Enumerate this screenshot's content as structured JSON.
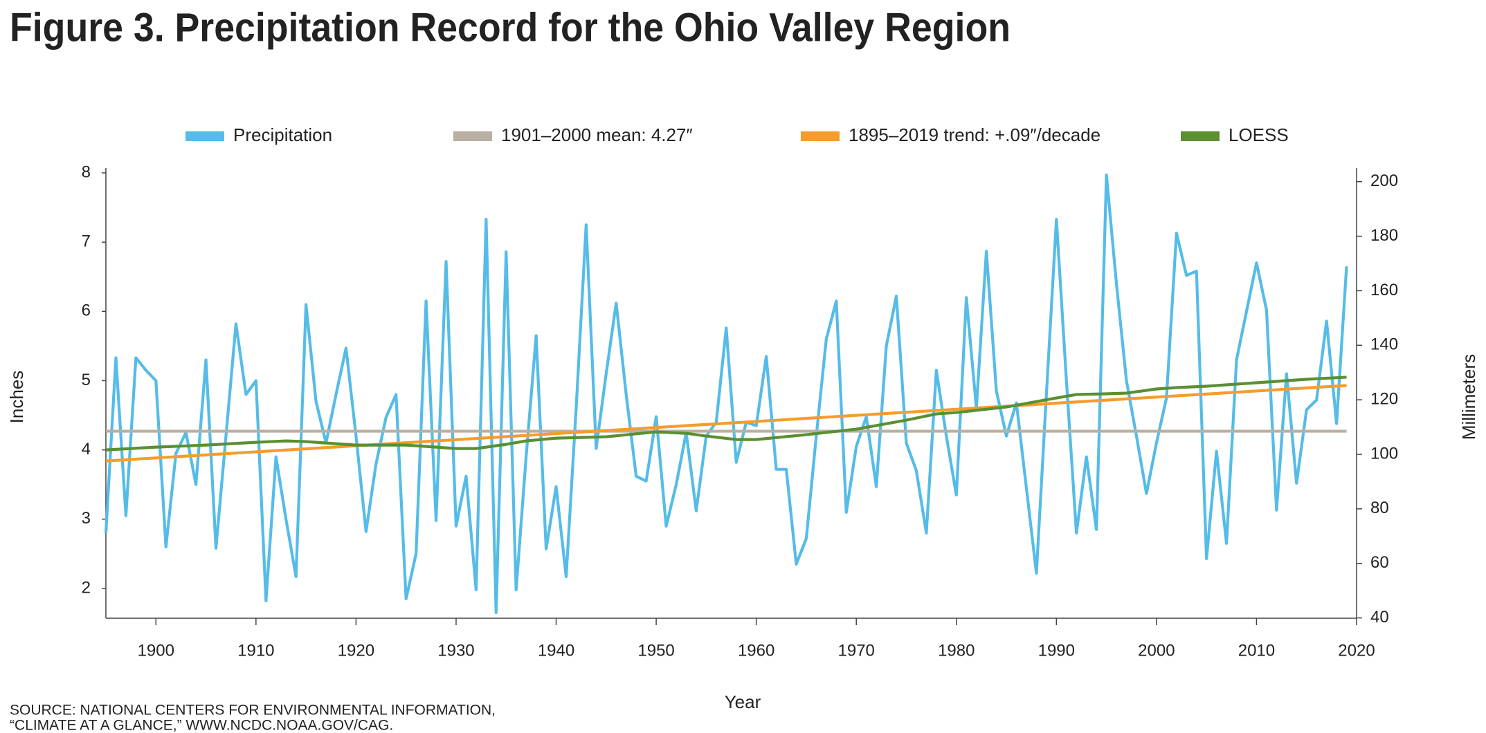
{
  "chart_data": {
    "type": "line",
    "title": "Figure 3. Precipitation Record for the Ohio Valley Region",
    "xlabel": "Year",
    "ylabel": "Inches",
    "y2label": "Millimeters",
    "source": [
      "SOURCE: NATIONAL CENTERS FOR ENVIRONMENTAL INFORMATION,",
      "“CLIMATE AT A GLANCE,” WWW.NCDC.NOAA.GOV/CAG."
    ],
    "xlim": [
      1895,
      2020
    ],
    "xticks": [
      1900,
      1910,
      1920,
      1930,
      1940,
      1950,
      1960,
      1970,
      1980,
      1990,
      2000,
      2010,
      2020
    ],
    "ylim": [
      1.57,
      8.07
    ],
    "yticks": [
      2,
      3,
      4,
      5,
      6,
      7,
      8
    ],
    "y2lim": [
      39.9,
      205
    ],
    "y2ticks": [
      40,
      60,
      80,
      100,
      120,
      140,
      160,
      180,
      200
    ],
    "series": [
      {
        "name": "Precipitation",
        "color": "#55bce8",
        "x": [
          1895,
          1896,
          1897,
          1898,
          1899,
          1900,
          1901,
          1902,
          1903,
          1904,
          1905,
          1906,
          1907,
          1908,
          1909,
          1910,
          1911,
          1912,
          1913,
          1914,
          1915,
          1916,
          1917,
          1918,
          1919,
          1920,
          1921,
          1922,
          1923,
          1924,
          1925,
          1926,
          1927,
          1928,
          1929,
          1930,
          1931,
          1932,
          1933,
          1934,
          1935,
          1936,
          1937,
          1938,
          1939,
          1940,
          1941,
          1942,
          1943,
          1944,
          1945,
          1946,
          1947,
          1948,
          1949,
          1950,
          1951,
          1952,
          1953,
          1954,
          1955,
          1956,
          1957,
          1958,
          1959,
          1960,
          1961,
          1962,
          1963,
          1964,
          1965,
          1966,
          1967,
          1968,
          1969,
          1970,
          1971,
          1972,
          1973,
          1974,
          1975,
          1976,
          1977,
          1978,
          1979,
          1980,
          1981,
          1982,
          1983,
          1984,
          1985,
          1986,
          1987,
          1988,
          1989,
          1990,
          1991,
          1992,
          1993,
          1994,
          1995,
          1996,
          1997,
          1998,
          1999,
          2000,
          2001,
          2002,
          2003,
          2004,
          2005,
          2006,
          2007,
          2008,
          2009,
          2010,
          2011,
          2012,
          2013,
          2014,
          2015,
          2016,
          2017,
          2018,
          2019
        ],
        "values": [
          2.8,
          5.33,
          3.05,
          5.33,
          5.15,
          5.0,
          2.6,
          3.95,
          4.25,
          3.5,
          5.3,
          2.58,
          4.2,
          5.82,
          4.8,
          5.0,
          1.82,
          3.9,
          3.0,
          2.17,
          6.1,
          4.7,
          4.1,
          4.8,
          5.47,
          4.2,
          2.82,
          3.8,
          4.47,
          4.8,
          1.85,
          2.5,
          6.15,
          2.98,
          6.72,
          2.9,
          3.62,
          1.98,
          7.33,
          1.65,
          6.86,
          1.98,
          3.9,
          5.65,
          2.57,
          3.47,
          2.17,
          4.6,
          7.25,
          4.02,
          5.1,
          6.12,
          4.8,
          3.62,
          3.55,
          4.48,
          2.9,
          3.5,
          4.25,
          3.12,
          4.2,
          4.4,
          5.76,
          3.82,
          4.4,
          4.35,
          5.35,
          3.72,
          3.72,
          2.35,
          2.72,
          4.2,
          5.6,
          6.15,
          3.1,
          4.05,
          4.48,
          3.47,
          5.5,
          6.22,
          4.1,
          3.7,
          2.8,
          5.15,
          4.2,
          3.35,
          6.2,
          4.6,
          6.87,
          4.85,
          4.2,
          4.68,
          3.45,
          2.22,
          4.8,
          7.33,
          5.0,
          2.8,
          3.9,
          2.85,
          7.97,
          6.4,
          5.0,
          4.2,
          3.37,
          4.1,
          4.75,
          7.13,
          6.52,
          6.58,
          2.43,
          3.98,
          2.65,
          5.3,
          6.0,
          6.7,
          6.02,
          3.13,
          5.1,
          3.52,
          4.58,
          4.72,
          5.86,
          4.38,
          6.65
        ]
      },
      {
        "name": "1901–2000 mean: 4.27″",
        "color": "#b9afa3",
        "x": [
          1895,
          2019
        ],
        "values": [
          4.27,
          4.27
        ]
      },
      {
        "name": "1895–2019 trend: +.09″/decade",
        "color": "#f59c2f",
        "x": [
          1895,
          2019
        ],
        "values": [
          3.84,
          4.93
        ]
      },
      {
        "name": "LOESS",
        "color": "#5a8f32",
        "x": [
          1895,
          1900,
          1905,
          1910,
          1913,
          1915,
          1920,
          1925,
          1930,
          1932,
          1935,
          1937,
          1940,
          1945,
          1950,
          1953,
          1955,
          1958,
          1960,
          1965,
          1970,
          1975,
          1978,
          1980,
          1985,
          1990,
          1992,
          1995,
          1997,
          2000,
          2002,
          2005,
          2010,
          2015,
          2019
        ],
        "values": [
          4.0,
          4.04,
          4.07,
          4.11,
          4.13,
          4.12,
          4.07,
          4.07,
          4.02,
          4.02,
          4.08,
          4.13,
          4.17,
          4.19,
          4.26,
          4.24,
          4.2,
          4.15,
          4.15,
          4.22,
          4.3,
          4.43,
          4.52,
          4.54,
          4.62,
          4.75,
          4.8,
          4.81,
          4.82,
          4.88,
          4.9,
          4.92,
          4.97,
          5.02,
          5.05
        ]
      }
    ]
  }
}
